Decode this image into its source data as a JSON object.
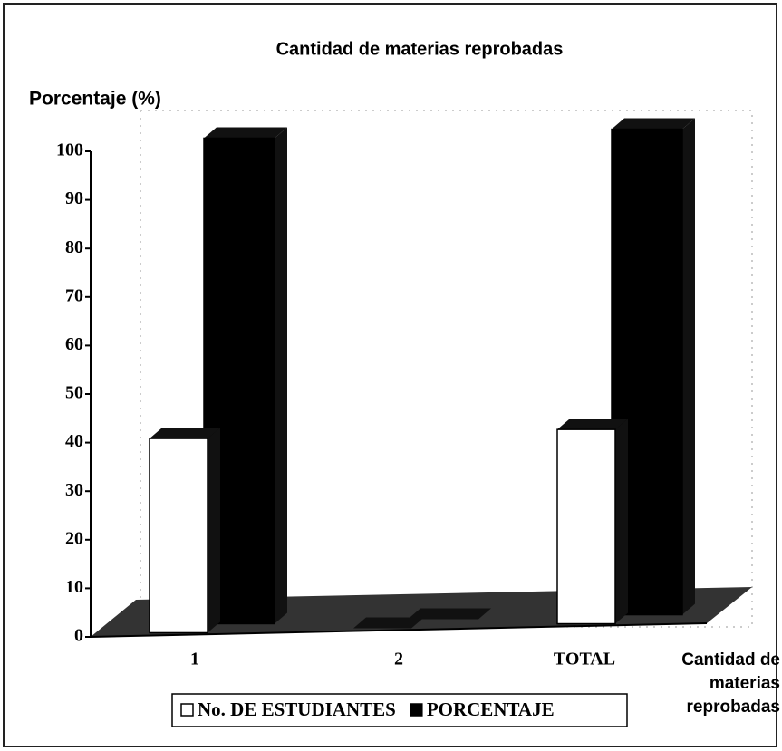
{
  "chart_data": {
    "type": "bar3d",
    "title": "Cantidad de materias reprobadas",
    "y_label": "Porcentaje (%)",
    "x_label": "Cantidad de materias reprobadas",
    "categories": [
      "1",
      "2",
      "TOTAL"
    ],
    "series": [
      {
        "name": "No. DE ESTUDIANTES",
        "color": "#ffffff",
        "values": [
          40,
          0,
          40
        ]
      },
      {
        "name": "PORCENTAJE",
        "color": "#000000",
        "values": [
          100,
          0,
          100
        ]
      }
    ],
    "ylim": [
      0,
      100
    ],
    "yticks": [
      0,
      10,
      20,
      30,
      40,
      50,
      60,
      70,
      80,
      90,
      100
    ],
    "legend": "bottom"
  }
}
